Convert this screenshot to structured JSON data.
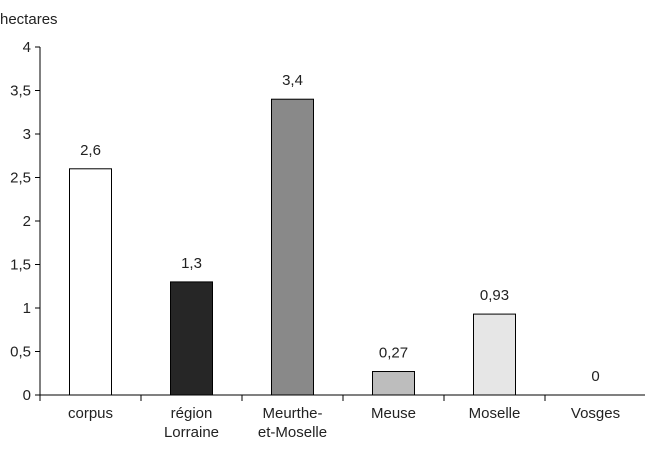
{
  "chart_data": {
    "type": "bar",
    "ylabel": "hectares",
    "ylim": [
      0,
      4
    ],
    "y_ticks": [
      0,
      0.5,
      1,
      1.5,
      2,
      2.5,
      3,
      3.5,
      4
    ],
    "y_tick_labels": [
      "0",
      "0,5",
      "1",
      "1,5",
      "2",
      "2,5",
      "3",
      "3,5",
      "4"
    ],
    "categories": [
      [
        "corpus"
      ],
      [
        "région",
        "Lorraine"
      ],
      [
        "Meurthe-",
        "et-Moselle"
      ],
      [
        "Meuse"
      ],
      [
        "Moselle"
      ],
      [
        "Vosges"
      ]
    ],
    "values": [
      2.6,
      1.3,
      3.4,
      0.27,
      0.93,
      0
    ],
    "value_labels": [
      "2,6",
      "1,3",
      "3,4",
      "0,27",
      "0,93",
      "0"
    ],
    "bar_colors": [
      "#ffffff",
      "#262626",
      "#898989",
      "#bdbdbd",
      "#e6e6e6",
      "#ffffff"
    ],
    "bar_stroke": "#000000",
    "grid": false,
    "legend": "none"
  }
}
